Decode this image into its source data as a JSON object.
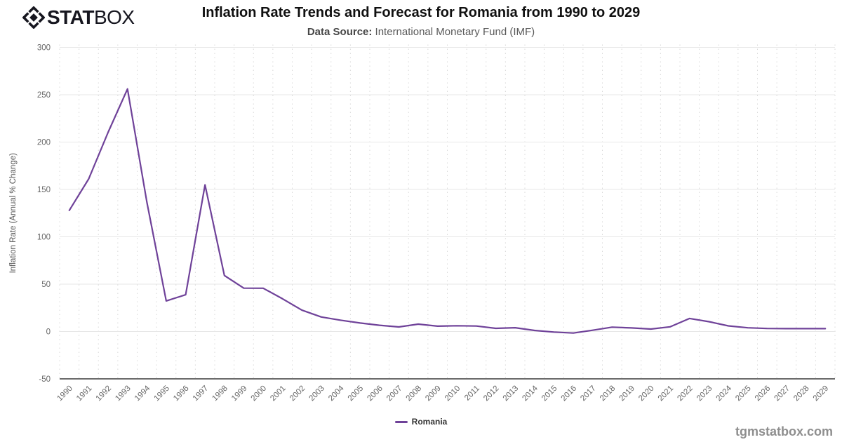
{
  "logo": {
    "icon": "statbox-diamond-icon",
    "text_bold": "STAT",
    "text_regular": "BOX"
  },
  "header": {
    "title": "Inflation Rate Trends and Forecast for Romania from 1990 to 2029",
    "subtitle_label": "Data Source:",
    "subtitle_value": "International Monetary Fund (IMF)"
  },
  "legend": {
    "items": [
      {
        "label": "Romania",
        "color": "#6F4299"
      }
    ]
  },
  "watermark": "tgmstatbox.com",
  "colors": {
    "line": "#6F4299",
    "grid_major": "#e7e7e7",
    "grid_minor_dotted": "#d8d8d8",
    "axis_line": "#3a3a3a",
    "tick_label": "#666666",
    "axis_title": "#555555"
  },
  "chart_data": {
    "type": "line",
    "title": "Inflation Rate Trends and Forecast for Romania from 1990 to 2029",
    "subtitle": "Data Source: International Monetary Fund (IMF)",
    "xlabel": "",
    "ylabel": "Inflation Rate (Annual % Change)",
    "ylim": [
      -50,
      300
    ],
    "yticks": [
      -50,
      0,
      50,
      100,
      150,
      200,
      250,
      300
    ],
    "grid": true,
    "legend_position": "bottom",
    "categories": [
      "1990",
      "1991",
      "1992",
      "1993",
      "1994",
      "1995",
      "1996",
      "1997",
      "1998",
      "1999",
      "2000",
      "2001",
      "2002",
      "2003",
      "2004",
      "2005",
      "2006",
      "2007",
      "2008",
      "2009",
      "2010",
      "2011",
      "2012",
      "2013",
      "2014",
      "2015",
      "2016",
      "2017",
      "2018",
      "2019",
      "2020",
      "2021",
      "2022",
      "2023",
      "2024",
      "2025",
      "2026",
      "2027",
      "2028",
      "2029"
    ],
    "series": [
      {
        "name": "Romania",
        "color": "#6F4299",
        "values": [
          127.9,
          161.1,
          210.4,
          256.1,
          136.7,
          32.3,
          38.8,
          154.8,
          59.1,
          45.8,
          45.7,
          34.5,
          22.5,
          15.3,
          11.9,
          9.0,
          6.6,
          4.8,
          7.8,
          5.6,
          6.1,
          5.8,
          3.3,
          4.0,
          1.1,
          -0.6,
          -1.6,
          1.3,
          4.6,
          3.8,
          2.6,
          5.0,
          13.8,
          10.4,
          5.9,
          3.9,
          3.2,
          3.0,
          3.0,
          3.0
        ]
      }
    ]
  }
}
